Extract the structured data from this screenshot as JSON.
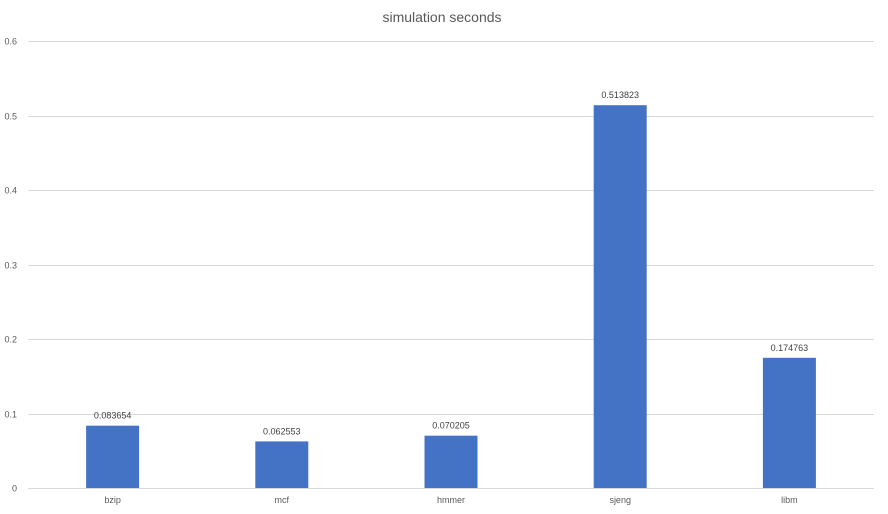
{
  "chart_data": {
    "type": "bar",
    "title": "simulation seconds",
    "xlabel": "",
    "ylabel": "",
    "categories": [
      "bzip",
      "mcf",
      "hmmer",
      "sjeng",
      "libm"
    ],
    "values": [
      0.083654,
      0.062553,
      0.070205,
      0.513823,
      0.174763
    ],
    "data_labels": [
      "0.083654",
      "0.062553",
      "0.070205",
      "0.513823",
      "0.174763"
    ],
    "ylim": [
      0,
      0.6
    ],
    "yticks": [
      0,
      0.1,
      0.2,
      0.3,
      0.4,
      0.5,
      0.6
    ],
    "ytick_labels": [
      "0",
      "0.1",
      "0.2",
      "0.3",
      "0.4",
      "0.5",
      "0.6"
    ],
    "grid": true,
    "legend": "none",
    "bar_color": "#4472c4"
  }
}
